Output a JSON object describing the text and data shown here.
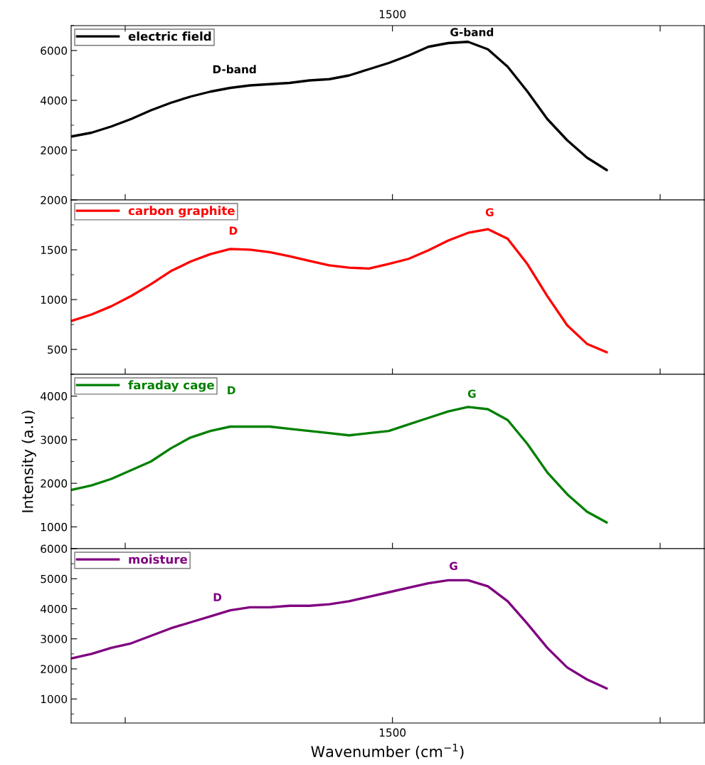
{
  "chart_data": [
    {
      "type": "line",
      "categories": [
        null,
        null,
        null,
        null,
        null,
        null,
        null,
        null,
        null,
        null,
        null,
        null,
        null,
        null,
        null,
        null,
        null,
        null,
        null,
        null,
        null,
        null,
        null,
        null,
        null,
        null,
        null,
        null
      ],
      "series": [
        {
          "name": "electric field",
          "color": "#000000",
          "values": [
            2550,
            2700,
            2950,
            3250,
            3600,
            3900,
            4150,
            4350,
            4500,
            4600,
            4650,
            4700,
            4800,
            4850,
            5000,
            5250,
            5500,
            5800,
            6150,
            6300,
            6350,
            6050,
            5350,
            4350,
            3250,
            2400,
            1700,
            1200
          ]
        }
      ],
      "ylim": [
        0,
        7000
      ],
      "yticks": [
        2000,
        4000,
        6000
      ],
      "tick_labels": "y",
      "legend": "top left",
      "annotations": [
        "D-band",
        "G-band",
        "1500"
      ]
    },
    {
      "type": "line",
      "categories": [
        null,
        null,
        null,
        null,
        null,
        null,
        null,
        null,
        null,
        null,
        null,
        null,
        null,
        null,
        null,
        null,
        null,
        null,
        null,
        null,
        null,
        null,
        null,
        null,
        null,
        null,
        null,
        null
      ],
      "series": [
        {
          "name": "carbon graphite",
          "color": "#ff0000",
          "values": [
            786,
            850,
            933,
            1036,
            1154,
            1285,
            1382,
            1456,
            1508,
            1501,
            1476,
            1435,
            1388,
            1344,
            1320,
            1312,
            1358,
            1409,
            1495,
            1593,
            1670,
            1707,
            1611,
            1355,
            1035,
            743,
            556,
            471
          ]
        }
      ],
      "ylim": [
        250,
        2000
      ],
      "yticks": [
        500,
        1000,
        1500,
        2000
      ],
      "tick_labels": "y",
      "legend": "top left",
      "annotations": [
        "D",
        "G"
      ]
    },
    {
      "type": "line",
      "categories": [
        null,
        null,
        null,
        null,
        null,
        null,
        null,
        null,
        null,
        null,
        null,
        null,
        null,
        null,
        null,
        null,
        null,
        null,
        null,
        null,
        null,
        null,
        null,
        null,
        null,
        null,
        null,
        null
      ],
      "series": [
        {
          "name": "faraday cage",
          "color": "#008000",
          "values": [
            1850,
            1950,
            2100,
            2300,
            2500,
            2800,
            3050,
            3200,
            3300,
            3300,
            3300,
            3250,
            3200,
            3150,
            3100,
            3150,
            3200,
            3350,
            3500,
            3650,
            3750,
            3700,
            3450,
            2900,
            2250,
            1750,
            1350,
            1100
          ]
        }
      ],
      "ylim": [
        500,
        4500
      ],
      "yticks": [
        1000,
        2000,
        3000,
        4000
      ],
      "tick_labels": "y",
      "legend": "top left",
      "ylabel": "Intensity (a.u)",
      "annotations": [
        "D",
        "G"
      ]
    },
    {
      "type": "line",
      "categories": [
        null,
        null,
        null,
        null,
        null,
        null,
        null,
        null,
        null,
        null,
        null,
        null,
        null,
        null,
        null,
        null,
        null,
        null,
        null,
        null,
        null,
        null,
        null,
        null,
        null,
        null,
        null,
        null
      ],
      "series": [
        {
          "name": "moisture",
          "color": "#800080",
          "values": [
            2350,
            2500,
            2700,
            2850,
            3100,
            3350,
            3550,
            3750,
            3950,
            4050,
            4050,
            4100,
            4100,
            4150,
            4250,
            4400,
            4550,
            4700,
            4850,
            4950,
            4950,
            4750,
            4250,
            3500,
            2700,
            2050,
            1650,
            1350
          ]
        }
      ],
      "ylim": [
        200,
        6000
      ],
      "yticks": [
        1000,
        2000,
        3000,
        4000,
        5000,
        6000
      ],
      "tick_labels": "y",
      "legend": "top left",
      "xlabel": "Wavenumber (cm$^{−1}$)",
      "annotations": [
        "D",
        "G",
        "1500"
      ]
    }
  ]
}
